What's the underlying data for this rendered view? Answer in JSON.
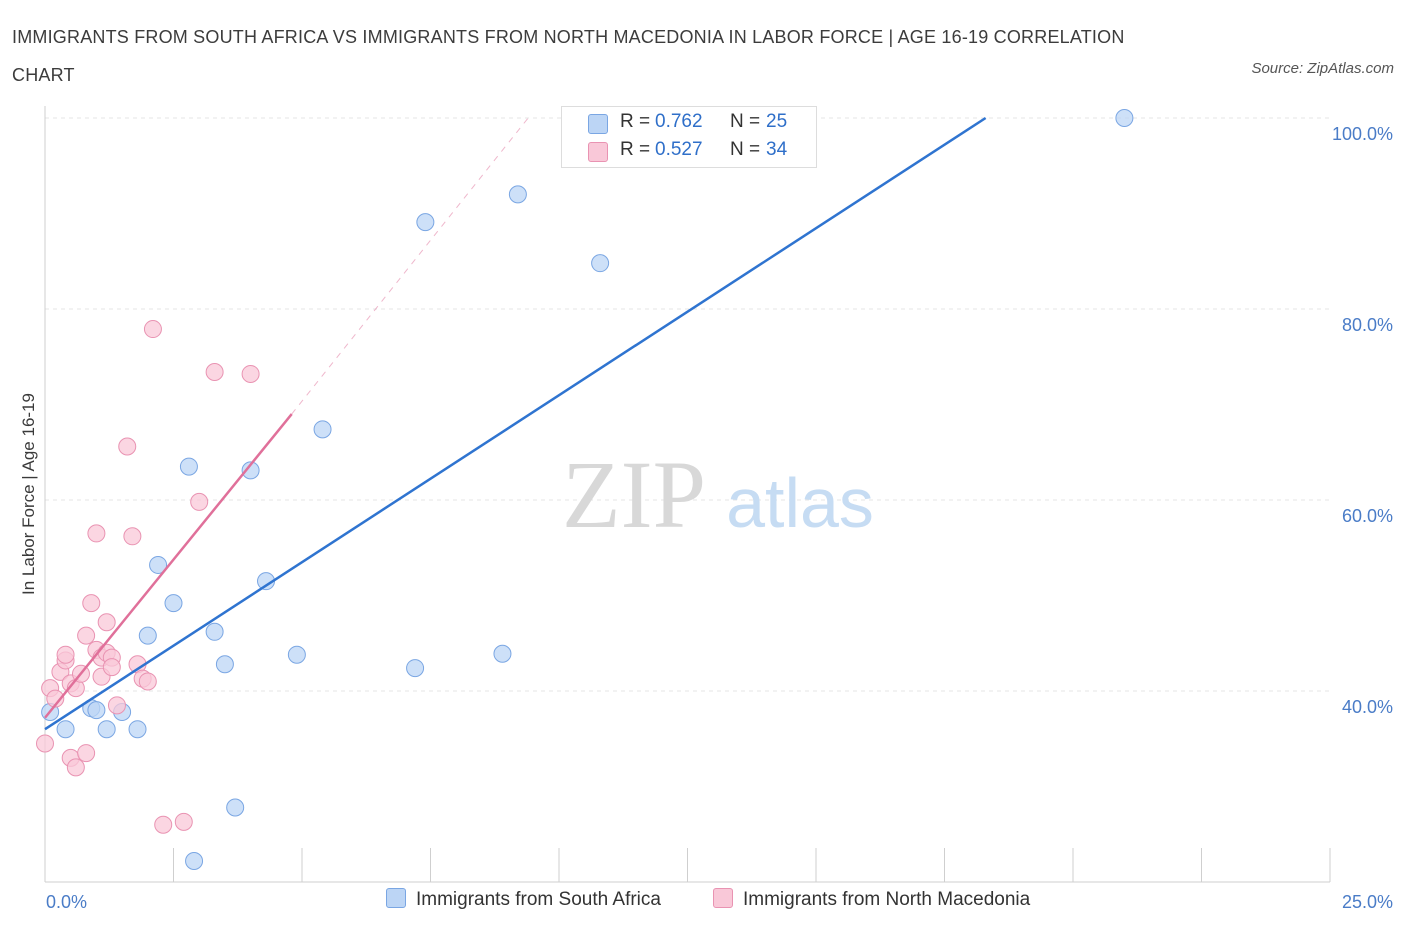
{
  "title": "IMMIGRANTS FROM SOUTH AFRICA VS IMMIGRANTS FROM NORTH MACEDONIA IN LABOR FORCE | AGE 16-19 CORRELATION CHART",
  "source": "Source: ZipAtlas.com",
  "watermark": {
    "zip": "ZIP",
    "atlas": "atlas"
  },
  "colors": {
    "blue": "#2f74d0",
    "pink": "#e0709a",
    "blue_fill": "#bcd5f5",
    "pink_fill": "#f9c8d8"
  },
  "legend": {
    "rows": [
      {
        "r_label": "R = ",
        "r_value": "0.762",
        "n_label": "N = ",
        "n_value": "25"
      },
      {
        "r_label": "R = ",
        "r_value": "0.527",
        "n_label": "N = ",
        "n_value": "34"
      }
    ]
  },
  "chart_data": {
    "type": "scatter",
    "title": "IMMIGRANTS FROM SOUTH AFRICA VS IMMIGRANTS FROM NORTH MACEDONIA IN LABOR FORCE | AGE 16-19 CORRELATION CHART",
    "xlabel": "",
    "ylabel": "In Labor Force | Age 16-19",
    "xlim": [
      0,
      25
    ],
    "ylim": [
      20,
      100
    ],
    "x_tick_labels": [
      "0.0%",
      "25.0%"
    ],
    "y_ticks": [
      40,
      60,
      80,
      100
    ],
    "y_tick_labels": [
      "40.0%",
      "60.0%",
      "80.0%",
      "100.0%"
    ],
    "grid": true,
    "legend_position": "top-center",
    "series": [
      {
        "name": "Immigrants from South Africa",
        "color": "#2f74d0",
        "points": [
          [
            0.1,
            37.8
          ],
          [
            0.4,
            36.0
          ],
          [
            0.9,
            38.2
          ],
          [
            1.0,
            38.0
          ],
          [
            1.2,
            36.0
          ],
          [
            1.5,
            37.8
          ],
          [
            1.8,
            36.0
          ],
          [
            2.0,
            45.8
          ],
          [
            2.2,
            53.2
          ],
          [
            2.5,
            49.2
          ],
          [
            2.8,
            63.5
          ],
          [
            2.9,
            22.2
          ],
          [
            3.3,
            46.2
          ],
          [
            3.5,
            42.8
          ],
          [
            3.7,
            27.8
          ],
          [
            4.0,
            63.1
          ],
          [
            4.3,
            51.5
          ],
          [
            4.9,
            43.8
          ],
          [
            5.4,
            67.4
          ],
          [
            7.2,
            42.4
          ],
          [
            7.4,
            89.1
          ],
          [
            8.9,
            43.9
          ],
          [
            9.2,
            92.0
          ],
          [
            10.8,
            84.8
          ],
          [
            21.0,
            100.0
          ]
        ],
        "trend": {
          "x": [
            0.0,
            18.3
          ],
          "y": [
            36.0,
            100.0
          ]
        }
      },
      {
        "name": "Immigrants from North Macedonia",
        "color": "#e0709a",
        "points": [
          [
            0.0,
            34.5
          ],
          [
            0.1,
            40.3
          ],
          [
            0.2,
            39.2
          ],
          [
            0.3,
            42.0
          ],
          [
            0.4,
            43.2
          ],
          [
            0.4,
            43.8
          ],
          [
            0.5,
            33.0
          ],
          [
            0.5,
            40.8
          ],
          [
            0.6,
            32.0
          ],
          [
            0.6,
            40.3
          ],
          [
            0.7,
            41.8
          ],
          [
            0.8,
            45.8
          ],
          [
            0.8,
            33.5
          ],
          [
            0.9,
            49.2
          ],
          [
            1.0,
            56.5
          ],
          [
            1.0,
            44.3
          ],
          [
            1.1,
            43.5
          ],
          [
            1.1,
            41.5
          ],
          [
            1.2,
            44.0
          ],
          [
            1.2,
            47.2
          ],
          [
            1.3,
            43.5
          ],
          [
            1.3,
            42.5
          ],
          [
            1.4,
            38.5
          ],
          [
            1.6,
            65.6
          ],
          [
            1.7,
            56.2
          ],
          [
            1.8,
            42.8
          ],
          [
            1.9,
            41.3
          ],
          [
            2.0,
            41.0
          ],
          [
            2.1,
            77.9
          ],
          [
            2.3,
            26.0
          ],
          [
            2.7,
            26.3
          ],
          [
            3.0,
            59.8
          ],
          [
            3.3,
            73.4
          ],
          [
            4.0,
            73.2
          ]
        ],
        "trend": {
          "x": [
            0.0,
            4.8
          ],
          "y": [
            37.2,
            69.0
          ]
        },
        "trend_extension": {
          "x": [
            4.8,
            9.4
          ],
          "y": [
            69.0,
            100.0
          ]
        }
      }
    ]
  }
}
